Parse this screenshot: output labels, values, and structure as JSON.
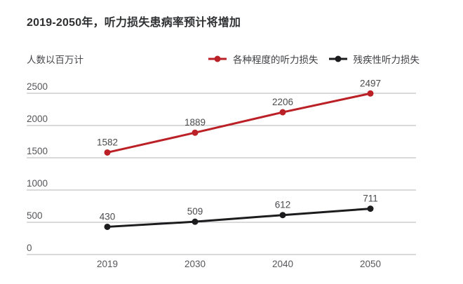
{
  "page": {
    "background": "#ffffff"
  },
  "chart_data": {
    "type": "line",
    "title": "2019-2050年，听力损失患病率预计将增加",
    "ylabel": "人数以百万计",
    "xlabel": "",
    "categories": [
      "2019",
      "2030",
      "2040",
      "2050"
    ],
    "series": [
      {
        "name": "各种程度的听力损失",
        "color": "#bb2026",
        "values": [
          1582,
          1889,
          2206,
          2497
        ]
      },
      {
        "name": "残疾性听力损失",
        "color": "#1c1c1e",
        "values": [
          430,
          509,
          612,
          711
        ]
      }
    ],
    "ylim": [
      0,
      2500
    ],
    "ytick_step": 500,
    "yticks": [
      0,
      500,
      1000,
      1500,
      2000,
      2500
    ],
    "grid": "horizontal-only",
    "legend_position": "top-right",
    "colors": {
      "gridline": "#b4b4b7",
      "tick_label": "#55565a",
      "data_label": "#4a4b4d",
      "title": "#2f3032",
      "ylabel": "#47484c"
    }
  }
}
